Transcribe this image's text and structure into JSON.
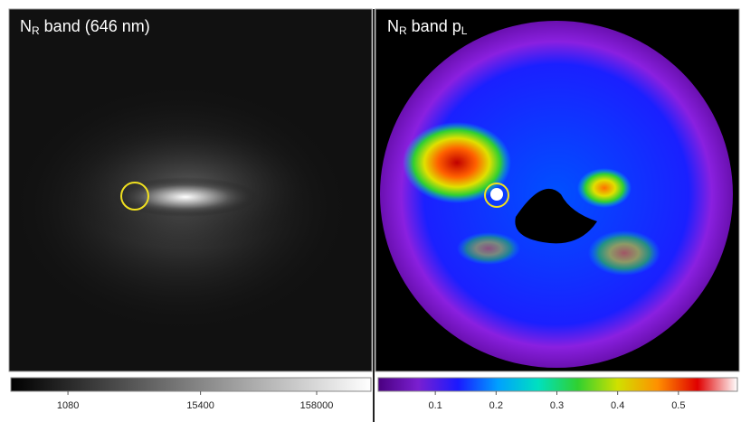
{
  "panels": [
    {
      "title": [
        {
          "text": "N"
        },
        {
          "text": "R",
          "sub": true
        },
        {
          "text": " band (646 nm)"
        }
      ],
      "colorbar": {
        "scale": "log",
        "lim": [
          344,
          469000
        ],
        "ticks": [
          1080,
          15400,
          158000
        ],
        "colormap": [
          "#000000",
          "#ffffff"
        ]
      }
    },
    {
      "title": [
        {
          "text": "N"
        },
        {
          "text": "R",
          "sub": true
        },
        {
          "text": " band p"
        },
        {
          "text": "L",
          "sub": true
        }
      ],
      "colorbar": {
        "scale": "linear",
        "lim": [
          0.006,
          0.597
        ],
        "ticks": [
          0.1,
          0.2,
          0.3,
          0.4,
          0.5
        ],
        "colormap": [
          "#4a0080",
          "#7a1fd0",
          "#1a1aff",
          "#00a0ff",
          "#00e0c0",
          "#30d030",
          "#d0e000",
          "#ff9000",
          "#e00000",
          "#ffffff"
        ]
      }
    }
  ]
}
